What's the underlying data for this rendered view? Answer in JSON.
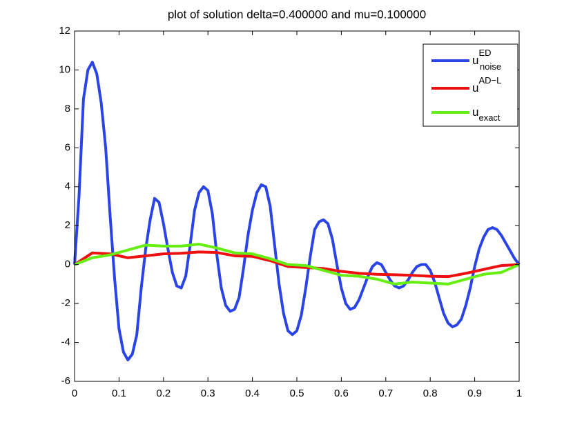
{
  "chart_data": {
    "type": "line",
    "title": "plot of solution delta=0.400000 and mu=0.100000",
    "xlim": [
      0,
      1
    ],
    "ylim": [
      -6,
      12
    ],
    "xticks": [
      0,
      0.1,
      0.2,
      0.3,
      0.4,
      0.5,
      0.6,
      0.7,
      0.8,
      0.9,
      1
    ],
    "yticks": [
      -6,
      -4,
      -2,
      0,
      2,
      4,
      6,
      8,
      10,
      12
    ],
    "legend": "top-right",
    "series": [
      {
        "name": "u",
        "superscript": "ED",
        "subscript": "noise",
        "color": "#2a44e8",
        "x": [
          0,
          0.01,
          0.02,
          0.03,
          0.04,
          0.05,
          0.06,
          0.07,
          0.08,
          0.09,
          0.1,
          0.11,
          0.12,
          0.13,
          0.14,
          0.15,
          0.16,
          0.17,
          0.18,
          0.19,
          0.2,
          0.21,
          0.22,
          0.23,
          0.24,
          0.25,
          0.26,
          0.27,
          0.28,
          0.29,
          0.3,
          0.31,
          0.32,
          0.33,
          0.34,
          0.35,
          0.36,
          0.37,
          0.38,
          0.39,
          0.4,
          0.41,
          0.42,
          0.43,
          0.44,
          0.45,
          0.46,
          0.47,
          0.48,
          0.49,
          0.5,
          0.51,
          0.52,
          0.53,
          0.54,
          0.55,
          0.56,
          0.57,
          0.58,
          0.59,
          0.6,
          0.61,
          0.62,
          0.63,
          0.64,
          0.65,
          0.66,
          0.67,
          0.68,
          0.69,
          0.7,
          0.71,
          0.72,
          0.73,
          0.74,
          0.75,
          0.76,
          0.77,
          0.78,
          0.79,
          0.8,
          0.81,
          0.82,
          0.83,
          0.84,
          0.85,
          0.86,
          0.87,
          0.88,
          0.89,
          0.9,
          0.91,
          0.92,
          0.93,
          0.94,
          0.95,
          0.96,
          0.97,
          0.98,
          0.99,
          1
        ],
        "values": [
          0,
          3.5,
          8.5,
          10.0,
          10.4,
          9.8,
          8.3,
          6.0,
          2.5,
          -0.7,
          -3.3,
          -4.5,
          -4.9,
          -4.6,
          -3.6,
          -1.2,
          0.8,
          2.3,
          3.4,
          3.2,
          2.1,
          0.8,
          -0.4,
          -1.1,
          -1.2,
          -0.6,
          1.0,
          2.8,
          3.7,
          4.0,
          3.8,
          2.6,
          0.5,
          -1.2,
          -2.1,
          -2.4,
          -2.3,
          -1.7,
          -0.2,
          1.5,
          2.8,
          3.7,
          4.1,
          4.0,
          3.0,
          1.0,
          -1.0,
          -2.5,
          -3.4,
          -3.6,
          -3.4,
          -2.6,
          -1.2,
          0.4,
          1.8,
          2.2,
          2.3,
          2.1,
          1.3,
          0.0,
          -1.2,
          -2.0,
          -2.3,
          -2.2,
          -1.8,
          -1.2,
          -0.6,
          -0.1,
          0.1,
          0.0,
          -0.4,
          -0.8,
          -1.1,
          -1.2,
          -1.1,
          -0.8,
          -0.4,
          -0.1,
          0.0,
          0.0,
          -0.3,
          -0.9,
          -1.7,
          -2.5,
          -3.0,
          -3.2,
          -3.1,
          -2.8,
          -2.1,
          -1.2,
          -0.1,
          0.8,
          1.4,
          1.8,
          1.9,
          1.8,
          1.5,
          1.1,
          0.7,
          0.3,
          0
        ]
      },
      {
        "name": "u",
        "superscript": "AD−L",
        "color": "#ee1111",
        "x": [
          0,
          0.04,
          0.08,
          0.12,
          0.16,
          0.2,
          0.24,
          0.28,
          0.32,
          0.36,
          0.4,
          0.44,
          0.48,
          0.52,
          0.56,
          0.6,
          0.64,
          0.68,
          0.72,
          0.76,
          0.8,
          0.84,
          0.88,
          0.92,
          0.96,
          1
        ],
        "values": [
          0,
          0.6,
          0.55,
          0.35,
          0.45,
          0.55,
          0.58,
          0.65,
          0.62,
          0.45,
          0.42,
          0.2,
          -0.1,
          -0.15,
          -0.2,
          -0.35,
          -0.45,
          -0.5,
          -0.52,
          -0.55,
          -0.6,
          -0.62,
          -0.45,
          -0.25,
          -0.05,
          0
        ]
      },
      {
        "name": "u",
        "subscript": "exact",
        "color": "#66ee11",
        "x": [
          0,
          0.04,
          0.08,
          0.12,
          0.16,
          0.2,
          0.24,
          0.28,
          0.32,
          0.36,
          0.4,
          0.44,
          0.48,
          0.52,
          0.56,
          0.6,
          0.64,
          0.68,
          0.72,
          0.76,
          0.8,
          0.84,
          0.88,
          0.92,
          0.96,
          1
        ],
        "values": [
          0,
          0.35,
          0.5,
          0.75,
          1.0,
          0.95,
          0.95,
          1.05,
          0.85,
          0.6,
          0.55,
          0.3,
          0.0,
          -0.05,
          -0.3,
          -0.55,
          -0.6,
          -0.75,
          -1.0,
          -0.9,
          -0.95,
          -1.0,
          -0.75,
          -0.5,
          -0.4,
          0
        ]
      }
    ]
  }
}
